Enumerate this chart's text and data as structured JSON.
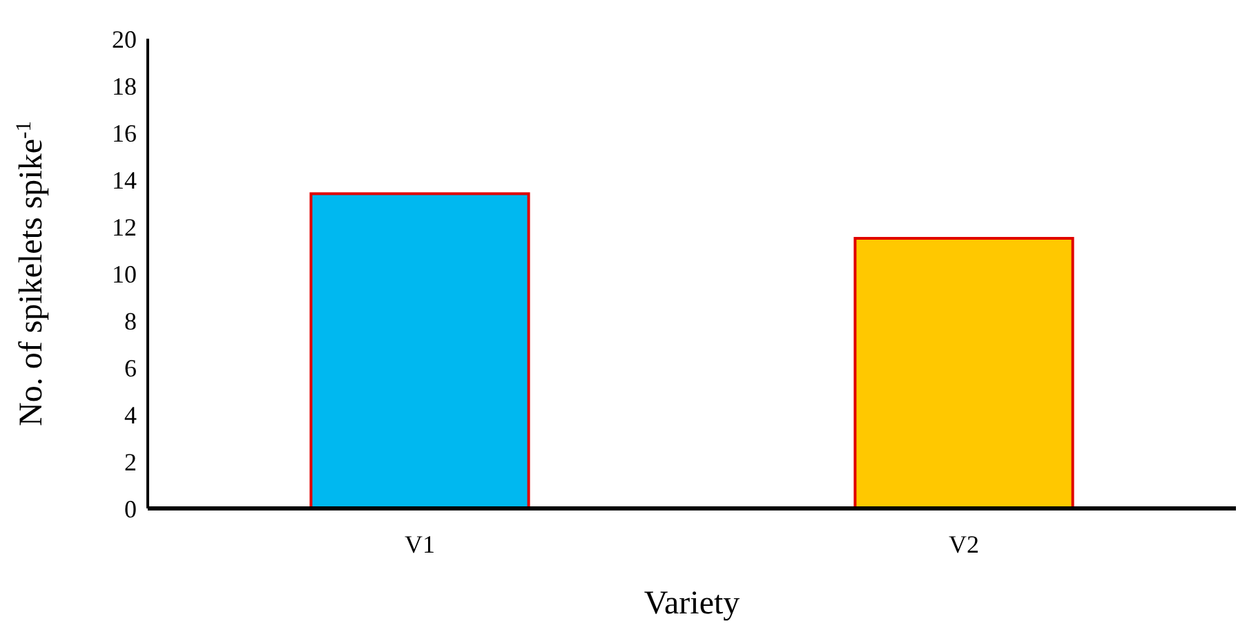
{
  "chart_data": {
    "type": "bar",
    "xlabel": "Variety",
    "ylabel": "No. of spikelets spike$^{-1}$",
    "categories": [
      "V1",
      "V2"
    ],
    "values": [
      13.4,
      11.5
    ],
    "colors": [
      "#00b8f0",
      "#ffc800"
    ],
    "ylim": [
      0,
      20
    ],
    "yticks": [
      0,
      2,
      4,
      6,
      8,
      10,
      12,
      14,
      16,
      18,
      20
    ]
  }
}
